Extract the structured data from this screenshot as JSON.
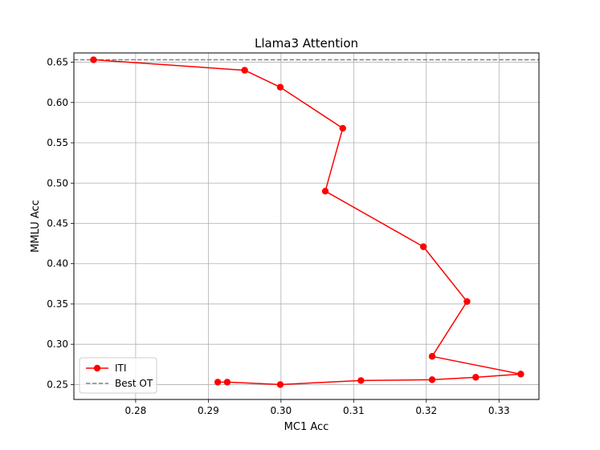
{
  "chart_data": {
    "type": "line",
    "title": "Llama3 Attention",
    "xlabel": "MC1 Acc",
    "ylabel": "MMLU Acc",
    "xlim": [
      0.2715,
      0.3355
    ],
    "ylim": [
      0.2315,
      0.6615
    ],
    "xticks": [
      0.28,
      0.29,
      0.3,
      0.31,
      0.32,
      0.33
    ],
    "xtick_labels": [
      "0.28",
      "0.29",
      "0.30",
      "0.31",
      "0.32",
      "0.33"
    ],
    "yticks": [
      0.25,
      0.3,
      0.35,
      0.4,
      0.45,
      0.5,
      0.55,
      0.6,
      0.65
    ],
    "ytick_labels": [
      "0.25",
      "0.30",
      "0.35",
      "0.40",
      "0.45",
      "0.50",
      "0.55",
      "0.60",
      "0.65"
    ],
    "grid": true,
    "legend_position": "lower-left",
    "series": [
      {
        "name": "ITI",
        "color": "#ff0000",
        "marker": "circle",
        "line_style": "solid",
        "x": [
          0.2742,
          0.295,
          0.2999,
          0.3085,
          0.3061,
          0.3196,
          0.3256,
          0.3208,
          0.333,
          0.3268,
          0.3208,
          0.311,
          0.2999,
          0.2926,
          0.2913
        ],
        "y": [
          0.653,
          0.64,
          0.619,
          0.568,
          0.49,
          0.421,
          0.353,
          0.285,
          0.263,
          0.259,
          0.256,
          0.255,
          0.25,
          0.253,
          0.253
        ]
      }
    ],
    "reference_lines": [
      {
        "name": "Best OT",
        "orientation": "horizontal",
        "y": 0.653,
        "color": "#808080",
        "line_style": "dashed"
      }
    ]
  }
}
